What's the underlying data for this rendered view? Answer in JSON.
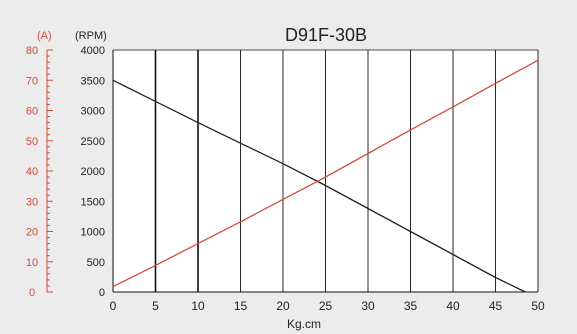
{
  "chart_data": {
    "type": "line",
    "title": "D91F-30B",
    "xlabel": "Kg.cm",
    "y_left_unit": "(A)",
    "y_right_unit": "(RPM)",
    "x_ticks": [
      0,
      5,
      10,
      15,
      20,
      25,
      30,
      35,
      40,
      45,
      50
    ],
    "current_ticks": [
      0,
      10,
      20,
      30,
      40,
      50,
      60,
      70,
      80
    ],
    "rpm_ticks": [
      0,
      500,
      1000,
      1500,
      2000,
      2500,
      3000,
      3500,
      4000
    ],
    "xlim": [
      0,
      50
    ],
    "current_ylim": [
      0,
      80
    ],
    "rpm_ylim": [
      0,
      4000
    ],
    "grid": "vertical",
    "series": [
      {
        "axis": "rpm",
        "color": "#222222",
        "points": [
          [
            0,
            3500
          ],
          [
            5,
            3150
          ],
          [
            10,
            2800
          ],
          [
            15,
            2460
          ],
          [
            20,
            2120
          ],
          [
            25,
            1760
          ],
          [
            30,
            1380
          ],
          [
            35,
            1000
          ],
          [
            40,
            620
          ],
          [
            45,
            240
          ],
          [
            48.5,
            0
          ]
        ]
      },
      {
        "axis": "rpm",
        "color": "#d44a3a",
        "points": [
          [
            0,
            90
          ],
          [
            5,
            440
          ],
          [
            10,
            800
          ],
          [
            15,
            1160
          ],
          [
            20,
            1530
          ],
          [
            25,
            1900
          ],
          [
            30,
            2290
          ],
          [
            35,
            2680
          ],
          [
            40,
            3060
          ],
          [
            45,
            3450
          ],
          [
            50,
            3830
          ]
        ]
      }
    ],
    "colors": {
      "background": "#ececec",
      "plot_background": "#ffffff",
      "grid": "#111111",
      "left_axis": "#d44a3a",
      "text": "#222222"
    }
  }
}
